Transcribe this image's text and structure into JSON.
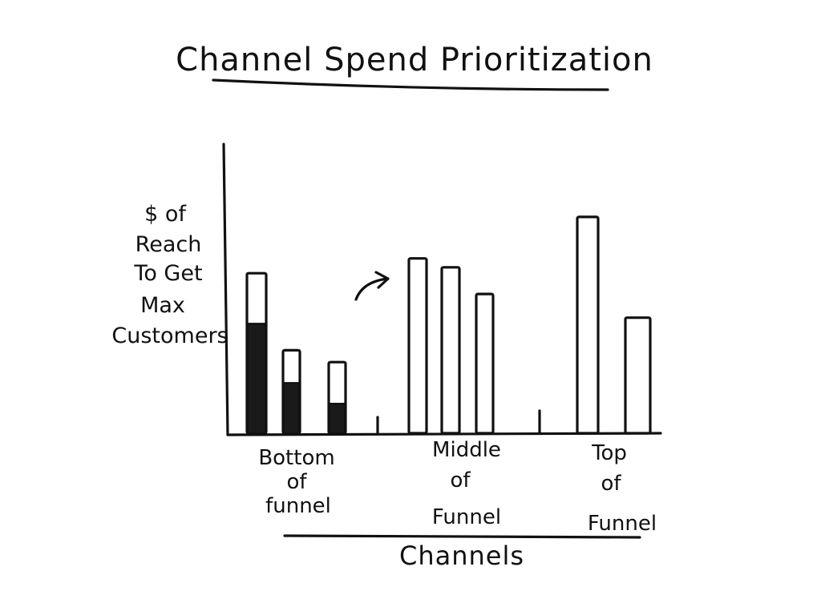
{
  "chart_data": {
    "type": "bar",
    "title": "Channel Spend Prioritization",
    "xlabel": "Channels",
    "ylabel": [
      "$ of",
      "Reach",
      "To Get",
      "Max",
      "Customers"
    ],
    "ylim": [
      0,
      100
    ],
    "grid": false,
    "groups": [
      {
        "label": [
          "Bottom",
          "of",
          "funnel"
        ],
        "bars": [
          {
            "value": 54,
            "filled": 37
          },
          {
            "value": 28,
            "filled": 17
          },
          {
            "value": 24,
            "filled": 10
          }
        ]
      },
      {
        "label": [
          "Middle",
          "of",
          "Funnel"
        ],
        "bars": [
          {
            "value": 59,
            "filled": 0
          },
          {
            "value": 56,
            "filled": 0
          },
          {
            "value": 47,
            "filled": 0
          }
        ]
      },
      {
        "label": [
          "Top",
          "of",
          "Funnel"
        ],
        "bars": [
          {
            "value": 73,
            "filled": 0
          },
          {
            "value": 39,
            "filled": 0
          }
        ]
      }
    ],
    "annotations": [
      "arrow pointing from bottom-of-funnel toward middle-of-funnel bars"
    ]
  }
}
